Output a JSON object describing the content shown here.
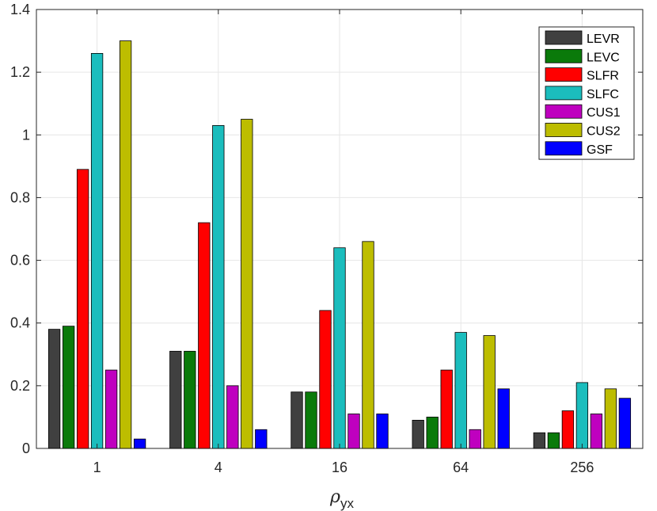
{
  "chart_data": {
    "type": "bar",
    "title": "",
    "xlabel": "ρ",
    "xlabel_subscript": "yx",
    "ylabel": "",
    "categories": [
      "1",
      "4",
      "16",
      "64",
      "256"
    ],
    "ylim": [
      0,
      1.4
    ],
    "yticks": [
      "0",
      "0.2",
      "0.4",
      "0.6",
      "0.8",
      "1",
      "1.2",
      "1.4"
    ],
    "grid": true,
    "legend_position": "top-right",
    "series": [
      {
        "name": "LEVR",
        "color": "#404040",
        "values": [
          0.38,
          0.31,
          0.18,
          0.09,
          0.05
        ]
      },
      {
        "name": "LEVC",
        "color": "#0a7a0a",
        "values": [
          0.39,
          0.31,
          0.18,
          0.1,
          0.05
        ]
      },
      {
        "name": "SLFR",
        "color": "#ff0000",
        "values": [
          0.89,
          0.72,
          0.44,
          0.25,
          0.12
        ]
      },
      {
        "name": "SLFC",
        "color": "#1bbdbd",
        "values": [
          1.26,
          1.03,
          0.64,
          0.37,
          0.21
        ]
      },
      {
        "name": "CUS1",
        "color": "#bf00bf",
        "values": [
          0.25,
          0.2,
          0.11,
          0.06,
          0.11
        ]
      },
      {
        "name": "CUS2",
        "color": "#bdbd00",
        "values": [
          1.3,
          1.05,
          0.66,
          0.36,
          0.19
        ]
      },
      {
        "name": "GSF",
        "color": "#0000ff",
        "values": [
          0.03,
          0.06,
          0.11,
          0.19,
          0.16
        ]
      }
    ]
  }
}
